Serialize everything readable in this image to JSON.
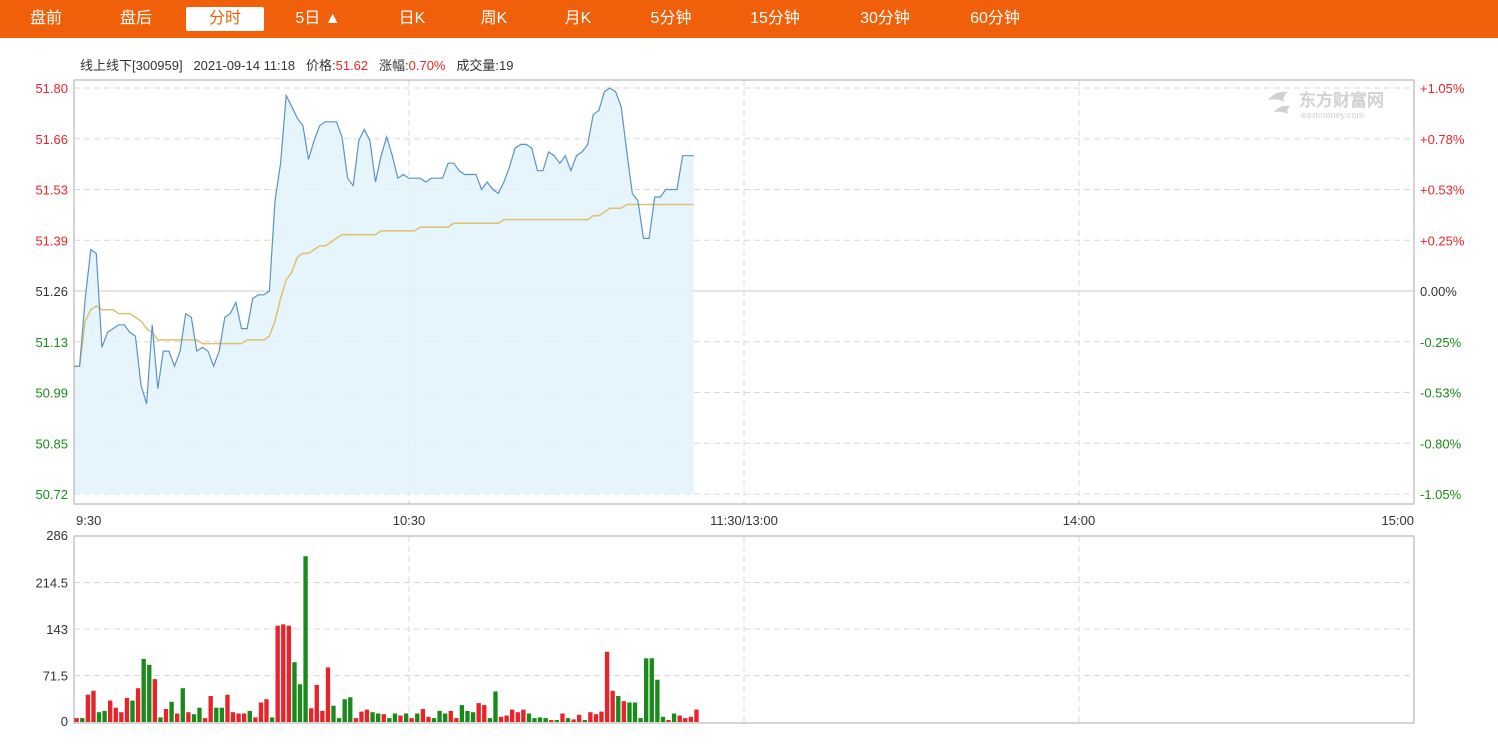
{
  "tabs": [
    {
      "label": "盘前",
      "active": false
    },
    {
      "label": "盘后",
      "active": false
    },
    {
      "label": "分时",
      "active": true
    },
    {
      "label": "5日 ▲",
      "active": false
    },
    {
      "label": "日K",
      "active": false
    },
    {
      "label": "周K",
      "active": false
    },
    {
      "label": "月K",
      "active": false
    },
    {
      "label": "5分钟",
      "active": false
    },
    {
      "label": "15分钟",
      "active": false
    },
    {
      "label": "30分钟",
      "active": false
    },
    {
      "label": "60分钟",
      "active": false
    }
  ],
  "info": {
    "stock": "线上线下[300959]",
    "datetime": "2021-09-14 11:18",
    "price_label": "价格:",
    "price": "51.62",
    "change_label": "涨幅:",
    "change": "0.70%",
    "volume_label": "成交量:",
    "volume": "19"
  },
  "watermark": {
    "brand": "东方财富网",
    "domain": "eastmoney.com"
  },
  "colors": {
    "up": "#e8242b",
    "down": "#1a8a1a",
    "price_line": "#5b93c7",
    "price_fill": "#e2f2fc",
    "avg_line": "#e0c070",
    "grid": "#cccccc",
    "border": "#aaaaaa"
  },
  "chart_data": {
    "type": "line",
    "prev_close": 51.26,
    "ylim": [
      50.72,
      51.8
    ],
    "price_ticks": [
      "51.80",
      "51.66",
      "51.53",
      "51.39",
      "51.26",
      "51.13",
      "50.99",
      "50.85",
      "50.72"
    ],
    "percent_ticks": [
      "+1.05%",
      "+0.78%",
      "+0.53%",
      "+0.25%",
      "0.00%",
      "-0.25%",
      "-0.53%",
      "-0.80%",
      "-1.05%"
    ],
    "time_ticks": [
      "9:30",
      "10:30",
      "11:30/13:00",
      "14:00",
      "15:00"
    ],
    "total_minutes": 240,
    "series": [
      {
        "values": [
          51.06,
          51.06,
          51.24,
          51.37,
          51.36,
          51.11,
          51.15,
          51.16,
          51.17,
          51.17,
          51.15,
          51.14,
          51.01,
          50.96,
          51.17,
          51.0,
          51.1,
          51.1,
          51.06,
          51.1,
          51.2,
          51.19,
          51.1,
          51.11,
          51.1,
          51.06,
          51.1,
          51.19,
          51.2,
          51.23,
          51.16,
          51.16,
          51.24,
          51.25,
          51.25,
          51.26,
          51.5,
          51.6,
          51.78,
          51.75,
          51.72,
          51.7,
          51.61,
          51.66,
          51.7,
          51.71,
          51.71,
          51.71,
          51.67,
          51.56,
          51.54,
          51.66,
          51.69,
          51.66,
          51.55,
          51.62,
          51.67,
          51.62,
          51.56,
          51.57,
          51.56,
          51.56,
          51.56,
          51.55,
          51.56,
          51.56,
          51.56,
          51.6,
          51.6,
          51.58,
          51.57,
          51.57,
          51.57,
          51.53,
          51.55,
          51.53,
          51.52,
          51.55,
          51.59,
          51.64,
          51.65,
          51.65,
          51.64,
          51.58,
          51.58,
          51.63,
          51.62,
          51.6,
          51.62,
          51.58,
          51.62,
          51.63,
          51.65,
          51.73,
          51.74,
          51.79,
          51.8,
          51.79,
          51.75,
          51.63,
          51.52,
          51.5,
          51.4,
          51.4,
          51.51,
          51.51,
          51.53,
          51.53,
          51.53,
          51.62,
          51.62,
          51.62
        ]
      },
      {
        "values": [
          51.06,
          51.06,
          51.18,
          51.21,
          51.22,
          51.21,
          51.21,
          51.21,
          51.2,
          51.2,
          51.2,
          51.19,
          51.18,
          51.16,
          51.15,
          51.13,
          51.13,
          51.13,
          51.13,
          51.13,
          51.13,
          51.13,
          51.13,
          51.12,
          51.12,
          51.12,
          51.12,
          51.12,
          51.12,
          51.12,
          51.12,
          51.13,
          51.13,
          51.13,
          51.13,
          51.14,
          51.18,
          51.24,
          51.29,
          51.31,
          51.35,
          51.36,
          51.36,
          51.37,
          51.38,
          51.38,
          51.39,
          51.4,
          51.41,
          51.41,
          51.41,
          51.41,
          51.41,
          51.41,
          51.41,
          51.42,
          51.42,
          51.42,
          51.42,
          51.42,
          51.42,
          51.42,
          51.43,
          51.43,
          51.43,
          51.43,
          51.43,
          51.43,
          51.44,
          51.44,
          51.44,
          51.44,
          51.44,
          51.44,
          51.44,
          51.44,
          51.44,
          51.45,
          51.45,
          51.45,
          51.45,
          51.45,
          51.45,
          51.45,
          51.45,
          51.45,
          51.45,
          51.45,
          51.45,
          51.45,
          51.45,
          51.45,
          51.45,
          51.46,
          51.46,
          51.47,
          51.48,
          51.48,
          51.48,
          51.49,
          51.49,
          51.49,
          51.49,
          51.49,
          51.49,
          51.49,
          51.49,
          51.49,
          51.49,
          51.49,
          51.49,
          51.49
        ]
      }
    ],
    "volume": {
      "ylim": [
        0,
        286
      ],
      "ticks": [
        "286",
        "214.5",
        "143",
        "71.5",
        "0"
      ],
      "values": [
        6,
        6,
        42,
        48,
        15,
        17,
        33,
        22,
        15,
        37,
        33,
        52,
        97,
        88,
        66,
        7,
        20,
        31,
        13,
        52,
        15,
        12,
        22,
        6,
        40,
        22,
        22,
        42,
        15,
        13,
        13,
        17,
        7,
        30,
        35,
        7,
        148,
        150,
        148,
        92,
        58,
        255,
        21,
        57,
        17,
        84,
        25,
        6,
        35,
        38,
        6,
        16,
        19,
        15,
        13,
        12,
        6,
        13,
        10,
        13,
        6,
        13,
        20,
        8,
        6,
        17,
        13,
        17,
        6,
        26,
        17,
        15,
        29,
        26,
        6,
        47,
        8,
        10,
        19,
        15,
        19,
        13,
        6,
        7,
        6,
        3,
        3,
        13,
        6,
        4,
        11,
        3,
        15,
        12,
        16,
        108,
        48,
        40,
        32,
        30,
        30,
        6,
        98,
        98,
        65,
        8,
        3,
        13,
        10,
        6,
        8,
        19
      ],
      "up": [
        true,
        false,
        true,
        true,
        false,
        false,
        true,
        true,
        true,
        true,
        false,
        true,
        false,
        false,
        true,
        false,
        true,
        false,
        true,
        false,
        true,
        false,
        false,
        true,
        true,
        false,
        false,
        true,
        true,
        true,
        true,
        false,
        true,
        true,
        true,
        false,
        true,
        true,
        true,
        false,
        false,
        false,
        true,
        true,
        true,
        true,
        false,
        false,
        false,
        false,
        true,
        true,
        true,
        false,
        false,
        true,
        false,
        false,
        true,
        false,
        true,
        false,
        true,
        true,
        false,
        false,
        false,
        true,
        true,
        false,
        false,
        false,
        true,
        true,
        false,
        false,
        true,
        true,
        true,
        true,
        true,
        false,
        false,
        false,
        false,
        true,
        false,
        true,
        false,
        true,
        true,
        false,
        true,
        true,
        true,
        true,
        true,
        false,
        true,
        false,
        false,
        false,
        false,
        false,
        false,
        false,
        true,
        false,
        true,
        true,
        true,
        true
      ]
    }
  }
}
